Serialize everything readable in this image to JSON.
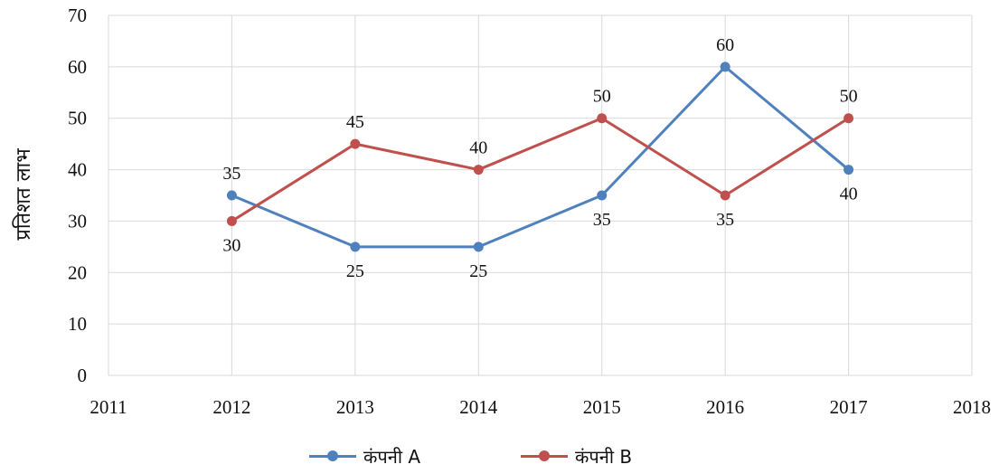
{
  "chart_data": {
    "type": "line",
    "ylabel": "प्रतिशत लाभ",
    "xlim": [
      2011,
      2018
    ],
    "ylim": [
      0,
      70
    ],
    "x_ticks": [
      "2011",
      "2012",
      "2013",
      "2014",
      "2015",
      "2016",
      "2017",
      "2018"
    ],
    "y_ticks": [
      "0",
      "10",
      "20",
      "30",
      "40",
      "50",
      "60",
      "70"
    ],
    "grid": true,
    "legend_position": "bottom",
    "x": [
      2012,
      2013,
      2014,
      2015,
      2016,
      2017
    ],
    "series": [
      {
        "name": "कंपनी A",
        "color": "#4F81BD",
        "values": [
          35,
          25,
          25,
          35,
          60,
          40
        ],
        "labels": [
          "35",
          "25",
          "25",
          "35",
          "60",
          "40"
        ]
      },
      {
        "name": "कंपनी B",
        "color": "#C0504D",
        "values": [
          30,
          45,
          40,
          50,
          35,
          50
        ],
        "labels": [
          "30",
          "45",
          "40",
          "50",
          "35",
          "50"
        ]
      }
    ]
  }
}
